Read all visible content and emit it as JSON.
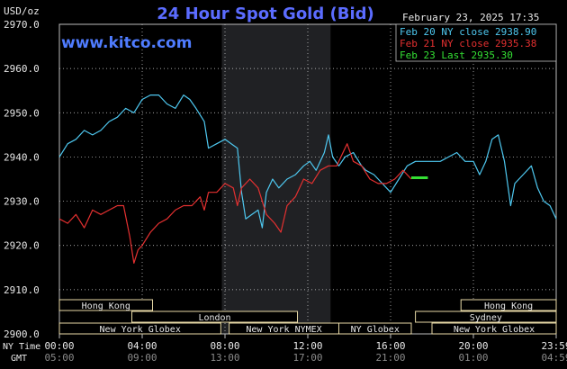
{
  "header": {
    "unit": "USD/oz",
    "title": "24 Hour Spot Gold (Bid)",
    "date": "February 23, 2025 17:35",
    "site": "www.kitco.com"
  },
  "colors": {
    "background": "#000000",
    "grid": "#d9d9d9",
    "title": "#5b6cff",
    "site": "#4f7cff",
    "blue_series": "#4ec8f0",
    "red_series": "#e43030",
    "green_series": "#34e034",
    "text": "#e8e8e8",
    "session_box": "#e7d9a6"
  },
  "chart_data": {
    "type": "line",
    "title": "24 Hour Spot Gold (Bid)",
    "ylabel": "USD/oz",
    "ylim": [
      2900,
      2970
    ],
    "yticks": [
      "2970.0",
      "2960.0",
      "2950.0",
      "2940.0",
      "2930.0",
      "2920.0",
      "2910.0",
      "2900.0"
    ],
    "xticks_ny": [
      "00:00",
      "04:00",
      "08:00",
      "12:00",
      "16:00",
      "20:00",
      "23:59"
    ],
    "xticks_gmt": [
      "05:00",
      "09:00",
      "13:00",
      "17:00",
      "21:00",
      "01:00",
      "04:59"
    ],
    "x_axis_labels": [
      "NY Time",
      "GMT"
    ],
    "legend": [
      {
        "label": "Feb 20 NY close 2938.90",
        "color": "#4ec8f0"
      },
      {
        "label": "Feb 21 NY close 2935.38",
        "color": "#e43030"
      },
      {
        "label": "Feb 23 Last 2935.30",
        "color": "#34e034"
      }
    ],
    "legend_position": "top-right",
    "grid": true,
    "shaded_region_hours": [
      7.85,
      13.1
    ],
    "sessions": [
      {
        "label": "Hong Kong",
        "row": 0,
        "start": 0,
        "end": 4.5
      },
      {
        "label": "Hong Kong",
        "row": 0,
        "start": 19.4,
        "end": 24
      },
      {
        "label": "London",
        "row": 1,
        "start": 3.5,
        "end": 11.5
      },
      {
        "label": "Sydney",
        "row": 1,
        "start": 17.2,
        "end": 24
      },
      {
        "label": "New York Globex",
        "row": 2,
        "start": 0,
        "end": 7.8
      },
      {
        "label": "New York NYMEX",
        "row": 2,
        "start": 8.2,
        "end": 13.5
      },
      {
        "label": "NY Globex",
        "row": 2,
        "start": 13.5,
        "end": 17.0
      },
      {
        "label": "New York Globex",
        "row": 2,
        "start": 18.0,
        "end": 24
      }
    ],
    "series": [
      {
        "name": "Feb 20 NY close 2938.90",
        "color": "#4ec8f0",
        "points": [
          [
            0,
            2940
          ],
          [
            0.4,
            2943
          ],
          [
            0.8,
            2944
          ],
          [
            1.2,
            2946
          ],
          [
            1.6,
            2945
          ],
          [
            2.0,
            2946
          ],
          [
            2.4,
            2948
          ],
          [
            2.8,
            2949
          ],
          [
            3.2,
            2951
          ],
          [
            3.6,
            2950
          ],
          [
            4.0,
            2953
          ],
          [
            4.4,
            2954
          ],
          [
            4.8,
            2954
          ],
          [
            5.2,
            2952
          ],
          [
            5.6,
            2951
          ],
          [
            6.0,
            2954
          ],
          [
            6.3,
            2953
          ],
          [
            6.6,
            2951
          ],
          [
            7.0,
            2948
          ],
          [
            7.2,
            2942
          ],
          [
            7.6,
            2943
          ],
          [
            8.0,
            2944
          ],
          [
            8.3,
            2943
          ],
          [
            8.6,
            2942
          ],
          [
            8.8,
            2932
          ],
          [
            9.0,
            2926
          ],
          [
            9.3,
            2927
          ],
          [
            9.6,
            2928
          ],
          [
            9.8,
            2924
          ],
          [
            10.0,
            2932
          ],
          [
            10.3,
            2935
          ],
          [
            10.6,
            2933
          ],
          [
            11.0,
            2935
          ],
          [
            11.4,
            2936
          ],
          [
            11.8,
            2938
          ],
          [
            12.1,
            2939
          ],
          [
            12.4,
            2937
          ],
          [
            12.8,
            2941
          ],
          [
            13.0,
            2945
          ],
          [
            13.2,
            2940
          ],
          [
            13.5,
            2938
          ],
          [
            13.8,
            2940
          ],
          [
            14.2,
            2941
          ],
          [
            14.6,
            2938
          ],
          [
            14.8,
            2937
          ],
          [
            15.2,
            2936
          ],
          [
            15.6,
            2934
          ],
          [
            16.0,
            2932
          ],
          [
            16.4,
            2935
          ],
          [
            16.8,
            2938
          ],
          [
            17.2,
            2939
          ],
          [
            17.6,
            2939
          ],
          [
            18.0,
            2939
          ],
          [
            18.4,
            2939
          ],
          [
            18.8,
            2940
          ],
          [
            19.2,
            2941
          ],
          [
            19.6,
            2939
          ],
          [
            20.0,
            2939
          ],
          [
            20.3,
            2936
          ],
          [
            20.6,
            2939
          ],
          [
            20.9,
            2944
          ],
          [
            21.2,
            2945
          ],
          [
            21.5,
            2939
          ],
          [
            21.8,
            2929
          ],
          [
            22.0,
            2934
          ],
          [
            22.4,
            2936
          ],
          [
            22.8,
            2938
          ],
          [
            23.1,
            2933
          ],
          [
            23.4,
            2930
          ],
          [
            23.7,
            2929
          ],
          [
            24.0,
            2926
          ]
        ]
      },
      {
        "name": "Feb 21 NY close 2935.38",
        "color": "#e43030",
        "points": [
          [
            0,
            2926
          ],
          [
            0.4,
            2925
          ],
          [
            0.8,
            2927
          ],
          [
            1.2,
            2924
          ],
          [
            1.6,
            2928
          ],
          [
            2.0,
            2927
          ],
          [
            2.4,
            2928
          ],
          [
            2.8,
            2929
          ],
          [
            3.1,
            2929
          ],
          [
            3.4,
            2922
          ],
          [
            3.6,
            2916
          ],
          [
            3.8,
            2919
          ],
          [
            4.0,
            2920
          ],
          [
            4.4,
            2923
          ],
          [
            4.8,
            2925
          ],
          [
            5.2,
            2926
          ],
          [
            5.6,
            2928
          ],
          [
            6.0,
            2929
          ],
          [
            6.4,
            2929
          ],
          [
            6.8,
            2931
          ],
          [
            7.0,
            2928
          ],
          [
            7.2,
            2932
          ],
          [
            7.6,
            2932
          ],
          [
            8.0,
            2934
          ],
          [
            8.4,
            2933
          ],
          [
            8.6,
            2929
          ],
          [
            8.8,
            2933
          ],
          [
            9.2,
            2935
          ],
          [
            9.6,
            2933
          ],
          [
            10.0,
            2927
          ],
          [
            10.4,
            2925
          ],
          [
            10.7,
            2923
          ],
          [
            11.0,
            2929
          ],
          [
            11.4,
            2931
          ],
          [
            11.8,
            2935
          ],
          [
            12.2,
            2934
          ],
          [
            12.6,
            2937
          ],
          [
            13.0,
            2938
          ],
          [
            13.4,
            2938
          ],
          [
            13.6,
            2940
          ],
          [
            13.9,
            2943
          ],
          [
            14.2,
            2939
          ],
          [
            14.6,
            2938
          ],
          [
            15.0,
            2935
          ],
          [
            15.4,
            2934
          ],
          [
            15.8,
            2934
          ],
          [
            16.2,
            2935
          ],
          [
            16.6,
            2937
          ],
          [
            17.0,
            2935
          ]
        ]
      },
      {
        "name": "Feb 23 Last 2935.30",
        "color": "#34e034",
        "points": [
          [
            17.0,
            2935.3
          ],
          [
            17.8,
            2935.3
          ]
        ]
      }
    ]
  }
}
